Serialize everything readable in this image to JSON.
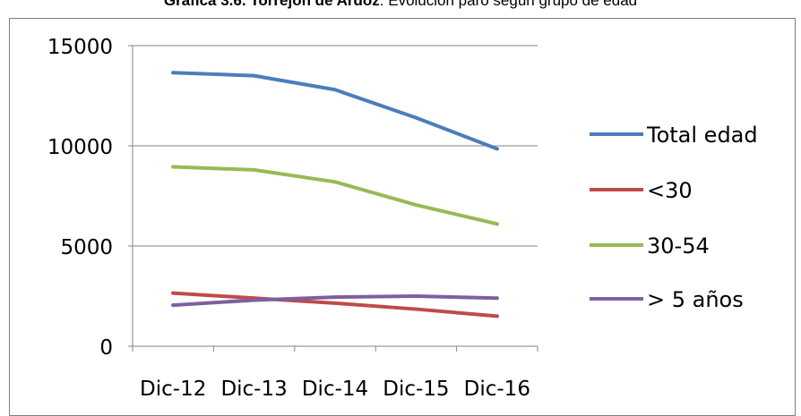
{
  "chart_data": {
    "type": "line",
    "title_bold": "Gráfica 3.6. Torrejón de Ardoz",
    "title_rest": ": Evolución paro según grupo de edad",
    "categories": [
      "Dic-12",
      "Dic-13",
      "Dic-14",
      "Dic-15",
      "Dic-16"
    ],
    "ylim": [
      0,
      15000
    ],
    "yticks": [
      "0",
      "5000",
      "10000",
      "15000"
    ],
    "grid": true,
    "legend_position": "right",
    "series": [
      {
        "name": "Total edad",
        "color": "#4a7ebb",
        "values": [
          13650,
          13500,
          12800,
          11400,
          9850
        ]
      },
      {
        "name": "<30",
        "color": "#be4b48",
        "values": [
          2650,
          2400,
          2150,
          1850,
          1500
        ]
      },
      {
        "name": "30-54",
        "color": "#98b954",
        "values": [
          8950,
          8800,
          8200,
          7050,
          6100
        ]
      },
      {
        "name": "> 5 años",
        "color": "#7d60a0",
        "values": [
          2050,
          2300,
          2450,
          2500,
          2400
        ]
      }
    ]
  }
}
